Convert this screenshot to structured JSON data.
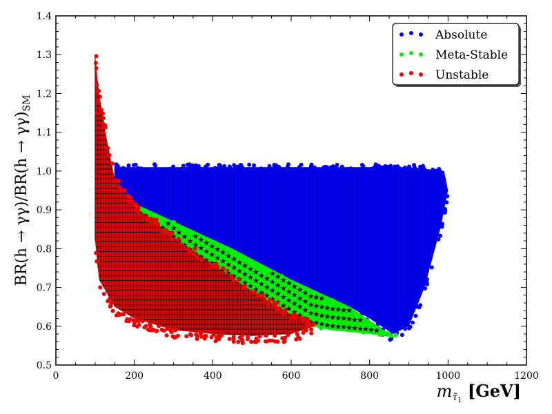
{
  "chart_data": {
    "type": "scatter",
    "title": "",
    "xlabel_main": "m",
    "xlabel_sub": "τ̃",
    "xlabel_subsub": "1",
    "xlabel_unit": "[GeV]",
    "ylabel_main": "BR(h → γγ)/BR(h → γγ)",
    "ylabel_sub": "SM",
    "xlim": [
      0,
      1200
    ],
    "ylim": [
      0.5,
      1.4
    ],
    "xticks": [
      0,
      200,
      400,
      600,
      800,
      1000,
      1200
    ],
    "yticks": [
      0.5,
      0.6,
      0.7,
      0.8,
      0.9,
      1.0,
      1.1,
      1.2,
      1.3,
      1.4
    ],
    "xtick_labels": [
      "0",
      "200",
      "400",
      "600",
      "800",
      "1000",
      "1200"
    ],
    "ytick_labels": [
      "0.5",
      "0.6",
      "0.7",
      "0.8",
      "0.9",
      "1.0",
      "1.1",
      "1.2",
      "1.3",
      "1.4"
    ],
    "grid": false,
    "legend_position": "top-right",
    "series": [
      {
        "name": "Absolute",
        "color": "#0000ee",
        "marker": "circle",
        "region_top": [
          [
            150,
            1.01
          ],
          [
            400,
            1.01
          ],
          [
            700,
            1.01
          ],
          [
            900,
            1.01
          ],
          [
            990,
            1.0
          ],
          [
            1000,
            0.95
          ]
        ],
        "region_bottom": [
          [
            150,
            0.94
          ],
          [
            300,
            0.87
          ],
          [
            450,
            0.8
          ],
          [
            600,
            0.72
          ],
          [
            750,
            0.65
          ],
          [
            800,
            0.62
          ],
          [
            860,
            0.58
          ],
          [
            900,
            0.6
          ],
          [
            940,
            0.7
          ],
          [
            980,
            0.85
          ],
          [
            1000,
            0.95
          ]
        ]
      },
      {
        "name": "Meta-Stable",
        "color": "#00ee00",
        "marker": "star",
        "region_top": [
          [
            150,
            0.94
          ],
          [
            300,
            0.87
          ],
          [
            450,
            0.8
          ],
          [
            600,
            0.72
          ],
          [
            750,
            0.65
          ],
          [
            850,
            0.58
          ]
        ],
        "region_bottom": [
          [
            150,
            0.93
          ],
          [
            250,
            0.86
          ],
          [
            350,
            0.78
          ],
          [
            450,
            0.72
          ],
          [
            550,
            0.66
          ],
          [
            650,
            0.6
          ],
          [
            700,
            0.59
          ],
          [
            800,
            0.58
          ],
          [
            870,
            0.57
          ]
        ]
      },
      {
        "name": "Unstable",
        "color": "#ee0000",
        "marker": "grid",
        "region_top": [
          [
            100,
            1.3
          ],
          [
            110,
            1.2
          ],
          [
            130,
            1.08
          ],
          [
            150,
            0.98
          ],
          [
            200,
            0.91
          ],
          [
            300,
            0.83
          ],
          [
            400,
            0.76
          ],
          [
            500,
            0.69
          ],
          [
            600,
            0.63
          ],
          [
            660,
            0.6
          ]
        ],
        "region_bottom": [
          [
            100,
            0.82
          ],
          [
            110,
            0.72
          ],
          [
            150,
            0.65
          ],
          [
            200,
            0.62
          ],
          [
            300,
            0.59
          ],
          [
            400,
            0.58
          ],
          [
            500,
            0.575
          ],
          [
            600,
            0.58
          ],
          [
            660,
            0.6
          ]
        ]
      }
    ]
  }
}
